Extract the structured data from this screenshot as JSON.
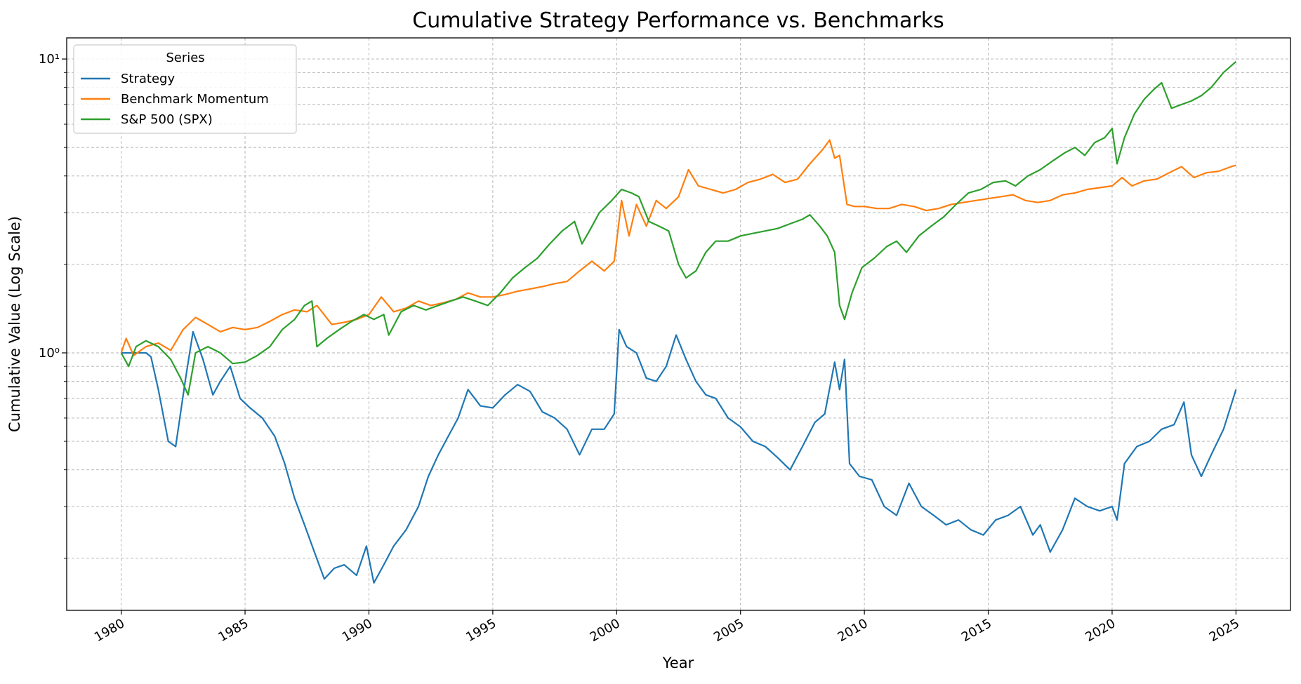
{
  "chart_data": {
    "type": "line",
    "title": "Cumulative Strategy Performance vs. Benchmarks",
    "xlabel": "Year",
    "ylabel": "Cumulative Value (Log Scale)",
    "yscale": "log",
    "xlim": [
      1977.8,
      2027.2
    ],
    "ylim": [
      0.133,
      11.8
    ],
    "grid": true,
    "legend": {
      "title": "Series",
      "placement": "top-left"
    },
    "xticks": [
      "1980",
      "1985",
      "1990",
      "1995",
      "2000",
      "2005",
      "2010",
      "2015",
      "2020",
      "2025"
    ],
    "yticks": [
      {
        "value": 1,
        "label": "10⁰"
      },
      {
        "value": 10,
        "label": "10¹"
      }
    ],
    "series": [
      {
        "name": "Strategy",
        "color": "#1f77b4",
        "x": [
          1980.0,
          1980.4,
          1981.0,
          1981.2,
          1981.5,
          1981.9,
          1982.2,
          1982.6,
          1982.9,
          1983.3,
          1983.7,
          1984.0,
          1984.4,
          1984.8,
          1985.2,
          1985.7,
          1986.2,
          1986.6,
          1987.0,
          1987.4,
          1987.8,
          1988.2,
          1988.6,
          1989.0,
          1989.5,
          1989.9,
          1990.2,
          1990.6,
          1991.0,
          1991.5,
          1992.0,
          1992.4,
          1992.8,
          1993.2,
          1993.6,
          1994.0,
          1994.5,
          1995.0,
          1995.5,
          1996.0,
          1996.5,
          1997.0,
          1997.5,
          1998.0,
          1998.5,
          1999.0,
          1999.5,
          1999.9,
          2000.1,
          2000.4,
          2000.8,
          2001.2,
          2001.6,
          2002.0,
          2002.4,
          2002.8,
          2003.2,
          2003.6,
          2004.0,
          2004.5,
          2005.0,
          2005.5,
          2006.0,
          2006.5,
          2007.0,
          2007.5,
          2008.0,
          2008.4,
          2008.8,
          2009.0,
          2009.2,
          2009.4,
          2009.8,
          2010.3,
          2010.8,
          2011.3,
          2011.8,
          2012.3,
          2012.8,
          2013.3,
          2013.8,
          2014.3,
          2014.8,
          2015.3,
          2015.8,
          2016.3,
          2016.8,
          2017.1,
          2017.5,
          2018.0,
          2018.5,
          2019.0,
          2019.5,
          2020.0,
          2020.2,
          2020.5,
          2021.0,
          2021.5,
          2022.0,
          2022.5,
          2022.9,
          2023.2,
          2023.6,
          2024.0,
          2024.5,
          2025.0
        ],
        "values": [
          1.0,
          1.0,
          1.0,
          0.97,
          0.75,
          0.5,
          0.48,
          0.82,
          1.18,
          0.95,
          0.72,
          0.8,
          0.9,
          0.7,
          0.65,
          0.6,
          0.52,
          0.42,
          0.32,
          0.26,
          0.21,
          0.17,
          0.185,
          0.19,
          0.175,
          0.22,
          0.165,
          0.19,
          0.22,
          0.25,
          0.3,
          0.38,
          0.45,
          0.52,
          0.6,
          0.75,
          0.66,
          0.65,
          0.72,
          0.78,
          0.74,
          0.63,
          0.6,
          0.55,
          0.45,
          0.55,
          0.55,
          0.62,
          1.2,
          1.05,
          1.0,
          0.82,
          0.8,
          0.9,
          1.15,
          0.95,
          0.8,
          0.72,
          0.7,
          0.6,
          0.56,
          0.5,
          0.48,
          0.44,
          0.4,
          0.48,
          0.58,
          0.62,
          0.93,
          0.75,
          0.95,
          0.42,
          0.38,
          0.37,
          0.3,
          0.28,
          0.36,
          0.3,
          0.28,
          0.26,
          0.27,
          0.25,
          0.24,
          0.27,
          0.28,
          0.3,
          0.24,
          0.26,
          0.21,
          0.25,
          0.32,
          0.3,
          0.29,
          0.3,
          0.27,
          0.42,
          0.48,
          0.5,
          0.55,
          0.57,
          0.68,
          0.45,
          0.38,
          0.45,
          0.55,
          0.75
        ]
      },
      {
        "name": "Benchmark Momentum",
        "color": "#ff7f0e",
        "x": [
          1980.0,
          1980.2,
          1980.5,
          1981.0,
          1981.5,
          1982.0,
          1982.5,
          1983.0,
          1983.5,
          1984.0,
          1984.5,
          1985.0,
          1985.5,
          1986.0,
          1986.5,
          1987.0,
          1987.5,
          1987.9,
          1988.5,
          1989.0,
          1989.5,
          1990.0,
          1990.5,
          1991.0,
          1991.5,
          1992.0,
          1992.5,
          1993.0,
          1993.5,
          1994.0,
          1994.5,
          1995.0,
          1995.5,
          1996.0,
          1996.5,
          1997.0,
          1997.5,
          1998.0,
          1998.5,
          1999.0,
          1999.5,
          1999.9,
          2000.2,
          2000.5,
          2000.8,
          2001.2,
          2001.6,
          2002.0,
          2002.5,
          2002.9,
          2003.3,
          2003.8,
          2004.3,
          2004.8,
          2005.3,
          2005.8,
          2006.3,
          2006.8,
          2007.3,
          2007.8,
          2008.3,
          2008.6,
          2008.8,
          2009.0,
          2009.3,
          2009.6,
          2010.0,
          2010.5,
          2011.0,
          2011.5,
          2012.0,
          2012.5,
          2013.0,
          2013.5,
          2014.0,
          2014.5,
          2015.0,
          2015.5,
          2016.0,
          2016.5,
          2017.0,
          2017.5,
          2018.0,
          2018.5,
          2019.0,
          2019.5,
          2020.0,
          2020.4,
          2020.8,
          2021.3,
          2021.8,
          2022.3,
          2022.8,
          2023.3,
          2023.8,
          2024.3,
          2024.8,
          2025.0
        ],
        "values": [
          1.0,
          1.12,
          0.98,
          1.05,
          1.08,
          1.02,
          1.2,
          1.32,
          1.25,
          1.18,
          1.22,
          1.2,
          1.22,
          1.28,
          1.35,
          1.4,
          1.38,
          1.45,
          1.25,
          1.27,
          1.3,
          1.35,
          1.55,
          1.38,
          1.42,
          1.5,
          1.45,
          1.48,
          1.52,
          1.6,
          1.55,
          1.55,
          1.58,
          1.62,
          1.65,
          1.68,
          1.72,
          1.75,
          1.9,
          2.05,
          1.9,
          2.05,
          3.3,
          2.5,
          3.2,
          2.7,
          3.3,
          3.1,
          3.4,
          4.2,
          3.7,
          3.6,
          3.5,
          3.6,
          3.8,
          3.9,
          4.05,
          3.8,
          3.9,
          4.4,
          4.9,
          5.3,
          4.6,
          4.7,
          3.2,
          3.15,
          3.15,
          3.1,
          3.1,
          3.2,
          3.15,
          3.05,
          3.1,
          3.2,
          3.25,
          3.3,
          3.35,
          3.4,
          3.45,
          3.3,
          3.25,
          3.3,
          3.45,
          3.5,
          3.6,
          3.65,
          3.7,
          3.95,
          3.7,
          3.85,
          3.9,
          4.1,
          4.3,
          3.95,
          4.1,
          4.15,
          4.3,
          4.35
        ]
      },
      {
        "name": "S&P 500 (SPX)",
        "color": "#2ca02c",
        "x": [
          1980.0,
          1980.3,
          1980.6,
          1981.0,
          1981.5,
          1982.0,
          1982.4,
          1982.7,
          1983.0,
          1983.5,
          1984.0,
          1984.5,
          1985.0,
          1985.5,
          1986.0,
          1986.5,
          1987.0,
          1987.4,
          1987.7,
          1987.9,
          1988.3,
          1988.8,
          1989.3,
          1989.8,
          1990.2,
          1990.6,
          1990.8,
          1991.3,
          1991.8,
          1992.3,
          1992.8,
          1993.3,
          1993.8,
          1994.3,
          1994.8,
          1995.3,
          1995.8,
          1996.3,
          1996.8,
          1997.3,
          1997.8,
          1998.3,
          1998.6,
          1998.9,
          1999.3,
          1999.8,
          2000.2,
          2000.6,
          2000.9,
          2001.3,
          2001.7,
          2002.1,
          2002.5,
          2002.8,
          2003.2,
          2003.6,
          2004.0,
          2004.5,
          2005.0,
          2005.5,
          2006.0,
          2006.5,
          2007.0,
          2007.5,
          2007.8,
          2008.2,
          2008.5,
          2008.8,
          2009.0,
          2009.2,
          2009.5,
          2009.9,
          2010.4,
          2010.9,
          2011.3,
          2011.7,
          2012.2,
          2012.7,
          2013.2,
          2013.7,
          2014.2,
          2014.7,
          2015.2,
          2015.7,
          2016.1,
          2016.6,
          2017.1,
          2017.6,
          2018.1,
          2018.5,
          2018.9,
          2019.3,
          2019.7,
          2020.0,
          2020.2,
          2020.5,
          2020.9,
          2021.3,
          2021.7,
          2022.0,
          2022.4,
          2022.8,
          2023.2,
          2023.6,
          2024.0,
          2024.5,
          2025.0
        ],
        "values": [
          1.0,
          0.9,
          1.05,
          1.1,
          1.05,
          0.95,
          0.82,
          0.72,
          1.0,
          1.05,
          1.0,
          0.92,
          0.93,
          0.98,
          1.05,
          1.2,
          1.3,
          1.45,
          1.5,
          1.05,
          1.12,
          1.2,
          1.28,
          1.35,
          1.3,
          1.35,
          1.15,
          1.38,
          1.45,
          1.4,
          1.45,
          1.5,
          1.55,
          1.5,
          1.45,
          1.6,
          1.8,
          1.95,
          2.1,
          2.35,
          2.6,
          2.8,
          2.35,
          2.6,
          3.0,
          3.3,
          3.6,
          3.5,
          3.4,
          2.8,
          2.7,
          2.6,
          2.0,
          1.8,
          1.9,
          2.2,
          2.4,
          2.4,
          2.5,
          2.55,
          2.6,
          2.65,
          2.75,
          2.85,
          2.95,
          2.7,
          2.5,
          2.2,
          1.45,
          1.3,
          1.6,
          1.95,
          2.1,
          2.3,
          2.4,
          2.2,
          2.5,
          2.7,
          2.9,
          3.2,
          3.5,
          3.6,
          3.8,
          3.85,
          3.7,
          4.0,
          4.2,
          4.5,
          4.8,
          5.0,
          4.7,
          5.2,
          5.4,
          5.8,
          4.4,
          5.4,
          6.5,
          7.3,
          7.9,
          8.3,
          6.8,
          7.0,
          7.2,
          7.5,
          8.0,
          9.0,
          9.8
        ]
      }
    ]
  }
}
